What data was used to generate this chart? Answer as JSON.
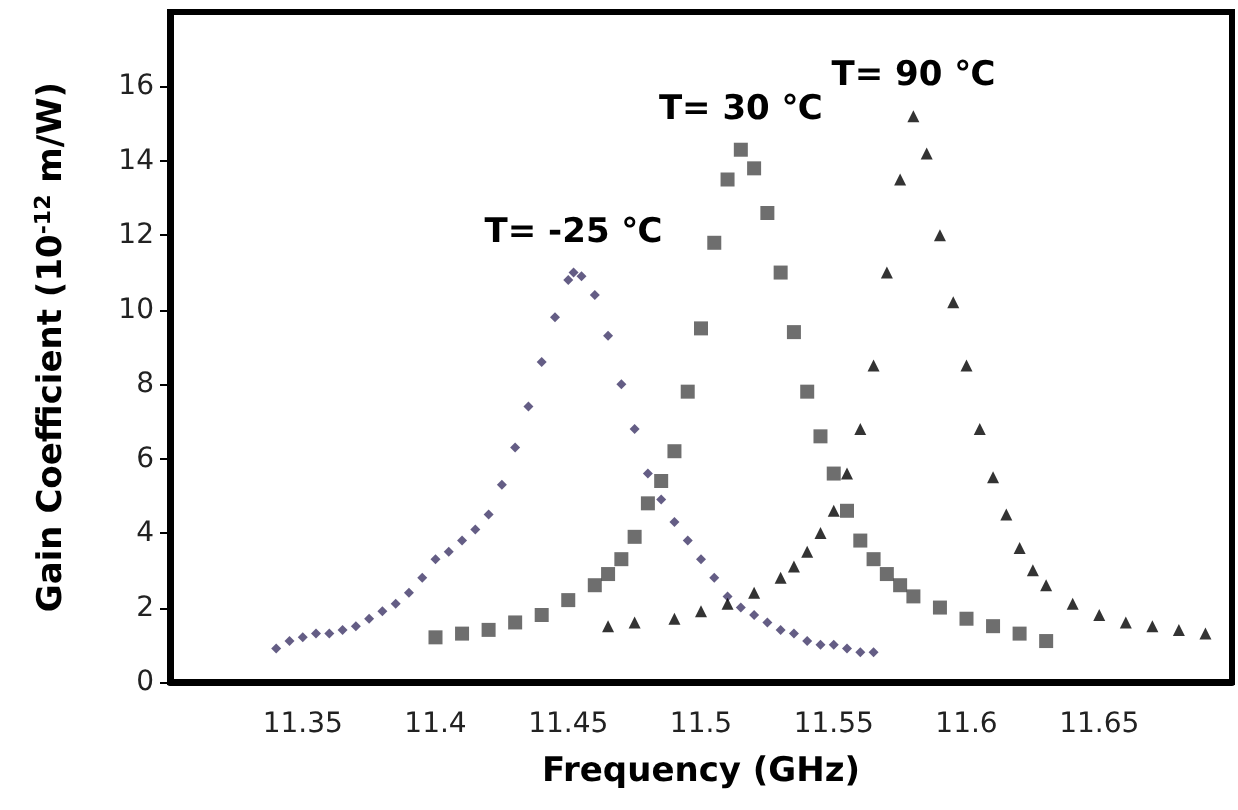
{
  "chart_data": {
    "type": "scatter",
    "xlabel": "Frequency (GHz)",
    "ylabel": "Gain Coefficient (10$^{-12}$ m/W)",
    "xlim": [
      11.3,
      11.7
    ],
    "xticks": [
      11.35,
      11.4,
      11.45,
      11.5,
      11.55,
      11.6,
      11.65
    ],
    "ylim": [
      0,
      18
    ],
    "yticks": [
      0,
      2,
      4,
      6,
      8,
      10,
      12,
      14,
      16
    ],
    "grid": false,
    "series": [
      {
        "marker": "diamond",
        "color": "#3d3566",
        "x": [
          11.34,
          11.345,
          11.35,
          11.355,
          11.36,
          11.365,
          11.37,
          11.375,
          11.38,
          11.385,
          11.39,
          11.395,
          11.4,
          11.405,
          11.41,
          11.415,
          11.42,
          11.425,
          11.43,
          11.435,
          11.44,
          11.445,
          11.45,
          11.452,
          11.455,
          11.46,
          11.465,
          11.47,
          11.475,
          11.48,
          11.485,
          11.49,
          11.495,
          11.5,
          11.505,
          11.51,
          11.515,
          11.52,
          11.525,
          11.53,
          11.535,
          11.54,
          11.545,
          11.55,
          11.555,
          11.56,
          11.565
        ],
        "values": [
          0.9,
          1.1,
          1.2,
          1.3,
          1.3,
          1.4,
          1.5,
          1.7,
          1.9,
          2.1,
          2.4,
          2.8,
          3.3,
          3.5,
          3.8,
          4.1,
          4.5,
          5.3,
          6.3,
          7.4,
          8.6,
          9.8,
          10.8,
          11.0,
          10.9,
          10.4,
          9.3,
          8.0,
          6.8,
          5.6,
          4.9,
          4.3,
          3.8,
          3.3,
          2.8,
          2.3,
          2.0,
          1.8,
          1.6,
          1.4,
          1.3,
          1.1,
          1.0,
          1.0,
          0.9,
          0.8,
          0.8
        ]
      },
      {
        "marker": "square",
        "color": "#4a4a4a",
        "x": [
          11.4,
          11.41,
          11.42,
          11.43,
          11.44,
          11.45,
          11.46,
          11.465,
          11.47,
          11.475,
          11.48,
          11.485,
          11.49,
          11.495,
          11.5,
          11.505,
          11.51,
          11.515,
          11.52,
          11.525,
          11.53,
          11.535,
          11.54,
          11.545,
          11.55,
          11.555,
          11.56,
          11.565,
          11.57,
          11.575,
          11.58,
          11.59,
          11.6,
          11.61,
          11.62,
          11.63
        ],
        "values": [
          1.2,
          1.3,
          1.4,
          1.6,
          1.8,
          2.2,
          2.6,
          2.9,
          3.3,
          3.9,
          4.8,
          5.4,
          6.2,
          7.8,
          9.5,
          11.8,
          13.5,
          14.3,
          13.8,
          12.6,
          11.0,
          9.4,
          7.8,
          6.6,
          5.6,
          4.6,
          3.8,
          3.3,
          2.9,
          2.6,
          2.3,
          2.0,
          1.7,
          1.5,
          1.3,
          1.1
        ]
      },
      {
        "marker": "triangle",
        "color": "#000000",
        "x": [
          11.465,
          11.475,
          11.49,
          11.5,
          11.51,
          11.52,
          11.53,
          11.535,
          11.54,
          11.545,
          11.55,
          11.555,
          11.56,
          11.565,
          11.57,
          11.575,
          11.58,
          11.585,
          11.59,
          11.595,
          11.6,
          11.605,
          11.61,
          11.615,
          11.62,
          11.625,
          11.63,
          11.64,
          11.65,
          11.66,
          11.67,
          11.68,
          11.69
        ],
        "values": [
          1.5,
          1.6,
          1.7,
          1.9,
          2.1,
          2.4,
          2.8,
          3.1,
          3.5,
          4.0,
          4.6,
          5.6,
          6.8,
          8.5,
          11.0,
          13.5,
          15.2,
          14.2,
          12.0,
          10.2,
          8.5,
          6.8,
          5.5,
          4.5,
          3.6,
          3.0,
          2.6,
          2.1,
          1.8,
          1.6,
          1.5,
          1.4,
          1.3
        ]
      }
    ],
    "annotations": [
      {
        "text": "T= -25 ℃",
        "x": 11.452,
        "y": 11.0
      },
      {
        "text": "T= 30 ℃",
        "x": 11.515,
        "y": 14.3
      },
      {
        "text": "T= 90 ℃",
        "x": 11.58,
        "y": 15.2
      }
    ]
  }
}
